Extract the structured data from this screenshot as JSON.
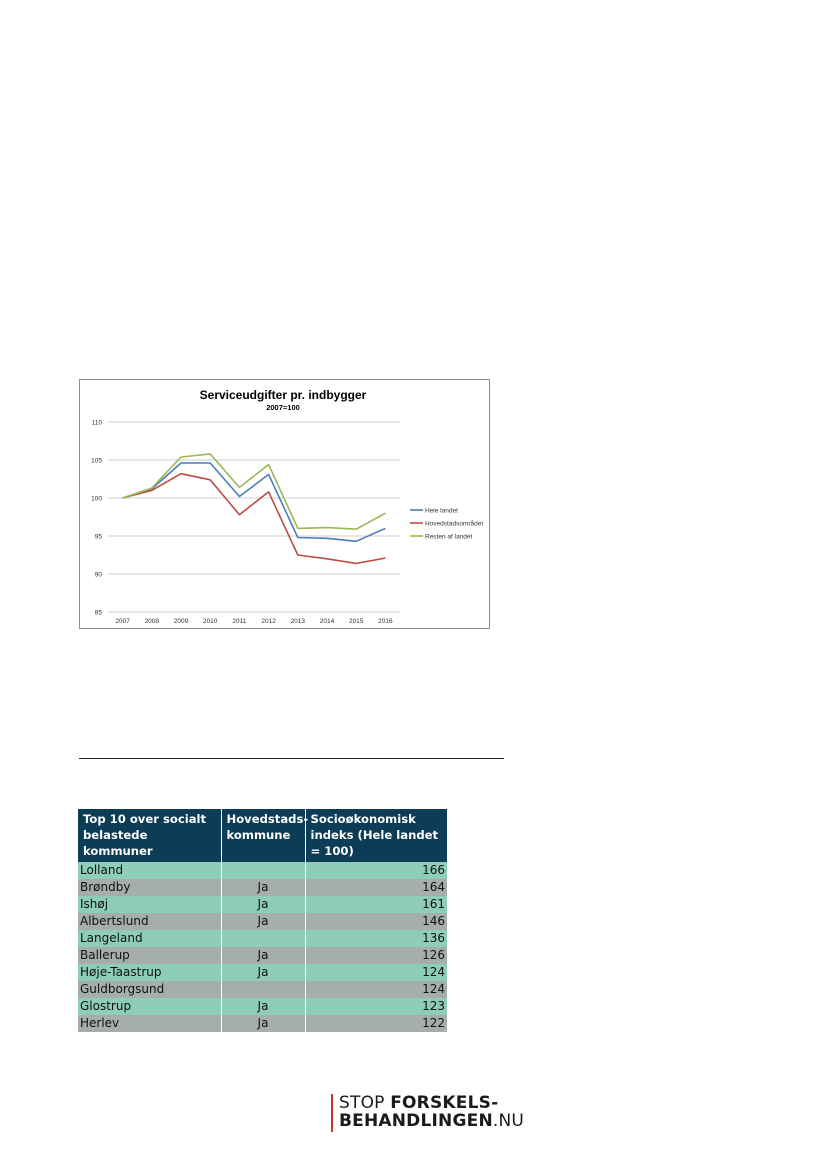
{
  "chart_data": {
    "type": "line",
    "title": "Serviceudgifter pr. indbygger",
    "subtitle": "2007=100",
    "xlabel": "",
    "ylabel": "",
    "ylim": [
      85,
      110
    ],
    "y_ticks": [
      "85",
      "90",
      "95",
      "100",
      "105",
      "110"
    ],
    "grid": true,
    "legend_position": "right",
    "x": [
      "2007",
      "2008",
      "2009",
      "2010",
      "2011",
      "2012",
      "2013",
      "2014",
      "2015",
      "2016"
    ],
    "series": [
      {
        "name": "Hele landet",
        "color": "#4a7ebb",
        "values": [
          100,
          101.2,
          104.6,
          104.6,
          100.2,
          103.1,
          94.8,
          94.7,
          94.3,
          96.0
        ]
      },
      {
        "name": "Hovedstadsområdet",
        "color": "#be4b48",
        "values": [
          100,
          101.0,
          103.2,
          102.4,
          97.8,
          100.8,
          92.5,
          92.0,
          91.4,
          92.1
        ]
      },
      {
        "name": "Resten af landet",
        "color": "#98b954",
        "values": [
          100,
          101.3,
          105.4,
          105.8,
          101.4,
          104.4,
          96.0,
          96.1,
          95.9,
          98.0
        ]
      }
    ]
  },
  "table": {
    "headers": [
      "Top 10 over socialt belastede kommuner",
      "Hovedstads-kommune",
      "Socioøkonomisk indeks (Hele landet = 100)"
    ],
    "rows": [
      {
        "name": "Lolland",
        "hovedstad": "",
        "index": "166"
      },
      {
        "name": "Brøndby",
        "hovedstad": "Ja",
        "index": "164"
      },
      {
        "name": "Ishøj",
        "hovedstad": "Ja",
        "index": "161"
      },
      {
        "name": "Albertslund",
        "hovedstad": "Ja",
        "index": "146"
      },
      {
        "name": "Langeland",
        "hovedstad": "",
        "index": "136"
      },
      {
        "name": "Ballerup",
        "hovedstad": "Ja",
        "index": "126"
      },
      {
        "name": "Høje-Taastrup",
        "hovedstad": "Ja",
        "index": "124"
      },
      {
        "name": "Guldborgsund",
        "hovedstad": "",
        "index": "124"
      },
      {
        "name": "Glostrup",
        "hovedstad": "Ja",
        "index": "123"
      },
      {
        "name": "Herlev",
        "hovedstad": "Ja",
        "index": "122"
      }
    ]
  },
  "logo": {
    "line1_regular": "STOP ",
    "line1_bold": "FORSKELS-",
    "line2_bold": "BEHANDLINGEN",
    "line2_regular": ".NU"
  }
}
